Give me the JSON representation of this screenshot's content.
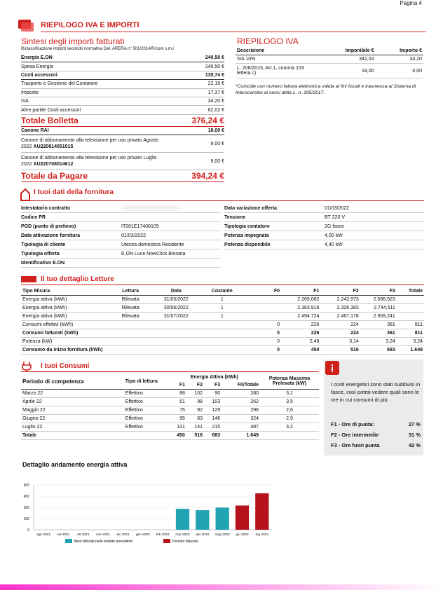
{
  "page": "Pagina 4",
  "header": {
    "title": "RIEPILOGO IVA E IMPORTI"
  },
  "sintesi": {
    "title": "Sintesi degli importi fatturati",
    "subtitle": "Riclassificazione importi secondo normativa Del. ARERA n° 501/2014/R/com s.m.i",
    "rows": [
      [
        "Energia E.ON",
        "240,50 €"
      ],
      [
        "Spesa Energia",
        "240,50 €"
      ],
      [
        "Costi accessori",
        "135,74 €"
      ],
      [
        "Trasporto e Gestione del Contatore",
        "22,15 €"
      ],
      [
        "Imposte",
        "17,37 €"
      ],
      [
        "IVA",
        "34,20 €"
      ],
      [
        "Altre partite Costi accessori",
        "62,02 €"
      ]
    ],
    "total": [
      "Totale Bolletta",
      "376,24 €"
    ],
    "rai": [
      "Canone RAI",
      "18,00 €"
    ],
    "canoni": [
      [
        "Canone di abbonamento alla televisione per uso privato Agosto 2022",
        "AU220814051015",
        "9,00 €"
      ],
      [
        "Canone di abbonamento alla televisione per uso privato Luglio 2022",
        "AU220708014612",
        "9,00 €"
      ]
    ],
    "pagare": [
      "Totale da Pagare",
      "394,24 €"
    ]
  },
  "iva": {
    "title": "RIEPILOGO IVA",
    "headers": [
      "Descrizione",
      "Imponibile €",
      "Importo €"
    ],
    "rows": [
      [
        "IVA 10%",
        "342,04",
        "34,20"
      ],
      [
        "L. 208/2015, Art.1, comma 153 lettera c)",
        "18,00",
        "0,00"
      ]
    ],
    "note": "*Coincide con numero fattura elettronica valida ai fini fiscali e trasmessa al Sistema di Interscambio ai sensi della L. n. 205/2017."
  },
  "fornitura": {
    "title": "I tuoi dati della fornitura",
    "left": [
      [
        "Intestatario contratto"
      ],
      [
        "Codice PR"
      ],
      [
        "POD (punto di prelievo)",
        "IT001E17408105"
      ],
      [
        "Data attivazione fornitura",
        "01/03/2022"
      ],
      [
        "Tipologia di cliente",
        "Utenza domestica Residente"
      ],
      [
        "Tipologia offerta",
        "E.ON Luce NowClick Bioraria"
      ],
      [
        "Identificativo E.ON"
      ]
    ],
    "right": [
      [
        "Data variazione offerta",
        "01/03/2022"
      ],
      [
        "Tensione",
        "BT 220 V"
      ],
      [
        "Tipologia contatore",
        "2G fasce"
      ],
      [
        "Potenza impegnata",
        "4,00 kW"
      ],
      [
        "Potenza disponibile",
        "4,40 kW"
      ]
    ]
  },
  "letture": {
    "title": "Il tuo dettaglio Letture",
    "headers": [
      "Tipo Misura",
      "Lettura",
      "Data",
      "Costante",
      "F0",
      "F1",
      "F2",
      "F3",
      "Totale"
    ],
    "rows": [
      [
        "Energia attiva (kWh)",
        "Rilevata",
        "31/05/2022",
        "1",
        null,
        "2.269,082",
        "2.242,973",
        "2.598,923",
        null
      ],
      [
        "Energia attiva (kWh)",
        "Rilevata",
        "30/06/2022",
        "1",
        null,
        "2.363,918",
        "2.326,383",
        "2.744,511",
        null
      ],
      [
        "Energia attiva (kWh)",
        "Rilevata",
        "31/07/2022",
        "1",
        null,
        "2.494,724",
        "2.467,178",
        "2.959,241",
        null
      ],
      [
        "Consumi effettivi (kWh)",
        null,
        null,
        null,
        "0",
        "226",
        "224",
        "361",
        "811"
      ],
      [
        "Consumi fatturati (kWh)",
        null,
        null,
        null,
        "0",
        "226",
        "224",
        "361",
        "811"
      ],
      [
        "Potenza (kW)",
        null,
        null,
        null,
        "0",
        "2,49",
        "3,14",
        "3,24",
        "3,24"
      ],
      [
        "Consumo da inizio fornitura (kWh)",
        null,
        null,
        null,
        "0",
        "450",
        "516",
        "683",
        "1.649"
      ]
    ]
  },
  "consumi": {
    "title": "I tuoi Consumi",
    "headers": {
      "period": "Periodo di competenza",
      "tipo": "Tipo di lettura",
      "energia": "Energia Attiva (kWh)",
      "bands": [
        "F1",
        "F2",
        "F3",
        "F0/Totale"
      ],
      "potenza": "Potenza Massima Prelevata (kW)"
    },
    "rows": [
      [
        "Marzo 22",
        "Effettivo",
        "88",
        "102",
        "90",
        "280",
        "3,1"
      ],
      [
        "Aprile 22",
        "Effettivo",
        "61",
        "98",
        "103",
        "262",
        "3,5"
      ],
      [
        "Maggio 22",
        "Effettivo",
        "75",
        "92",
        "129",
        "296",
        "2,6"
      ],
      [
        "Giugno 22",
        "Effettivo",
        "95",
        "83",
        "146",
        "324",
        "2,9"
      ],
      [
        "Luglio 22",
        "Effettivo",
        "131",
        "141",
        "215",
        "487",
        "3,2"
      ],
      [
        "Totale",
        null,
        "450",
        "516",
        "683",
        "1.649",
        null
      ]
    ]
  },
  "info": {
    "text": "I costi energetici sono stati suddivisi in fasce, così potrai vedere quali sono le ore in cui consumi di più:",
    "rows": [
      [
        "F1 - Ore di punta:",
        "27 %"
      ],
      [
        "F2 - Ore intermedie",
        "31 %"
      ],
      [
        "F3 - Ore fuori punta",
        "42 %"
      ]
    ]
  },
  "chart_data": {
    "type": "bar",
    "title": "Dettaglio andamento energia attiva",
    "categories": [
      "ago 2021",
      "set 2021",
      "ott 2021",
      "nov 2021",
      "dic 2021",
      "gen 2022",
      "feb 2022",
      "mar 2022",
      "apr 2022",
      "mag 2022",
      "giu 2022",
      "lug 2022"
    ],
    "series": [
      {
        "name": "Mesi fatturati nelle bollette precedenti",
        "color": "#22a3b3",
        "values": [
          null,
          null,
          null,
          null,
          null,
          null,
          null,
          280,
          262,
          296,
          null,
          null
        ]
      },
      {
        "name": "Periodo fatturato",
        "color": "#b5121b",
        "values": [
          null,
          null,
          null,
          null,
          null,
          null,
          null,
          null,
          null,
          null,
          324,
          487
        ]
      }
    ],
    "ylim": [
      0,
      600
    ],
    "yticks": [
      0,
      150,
      300,
      450,
      600
    ],
    "grid": true
  }
}
